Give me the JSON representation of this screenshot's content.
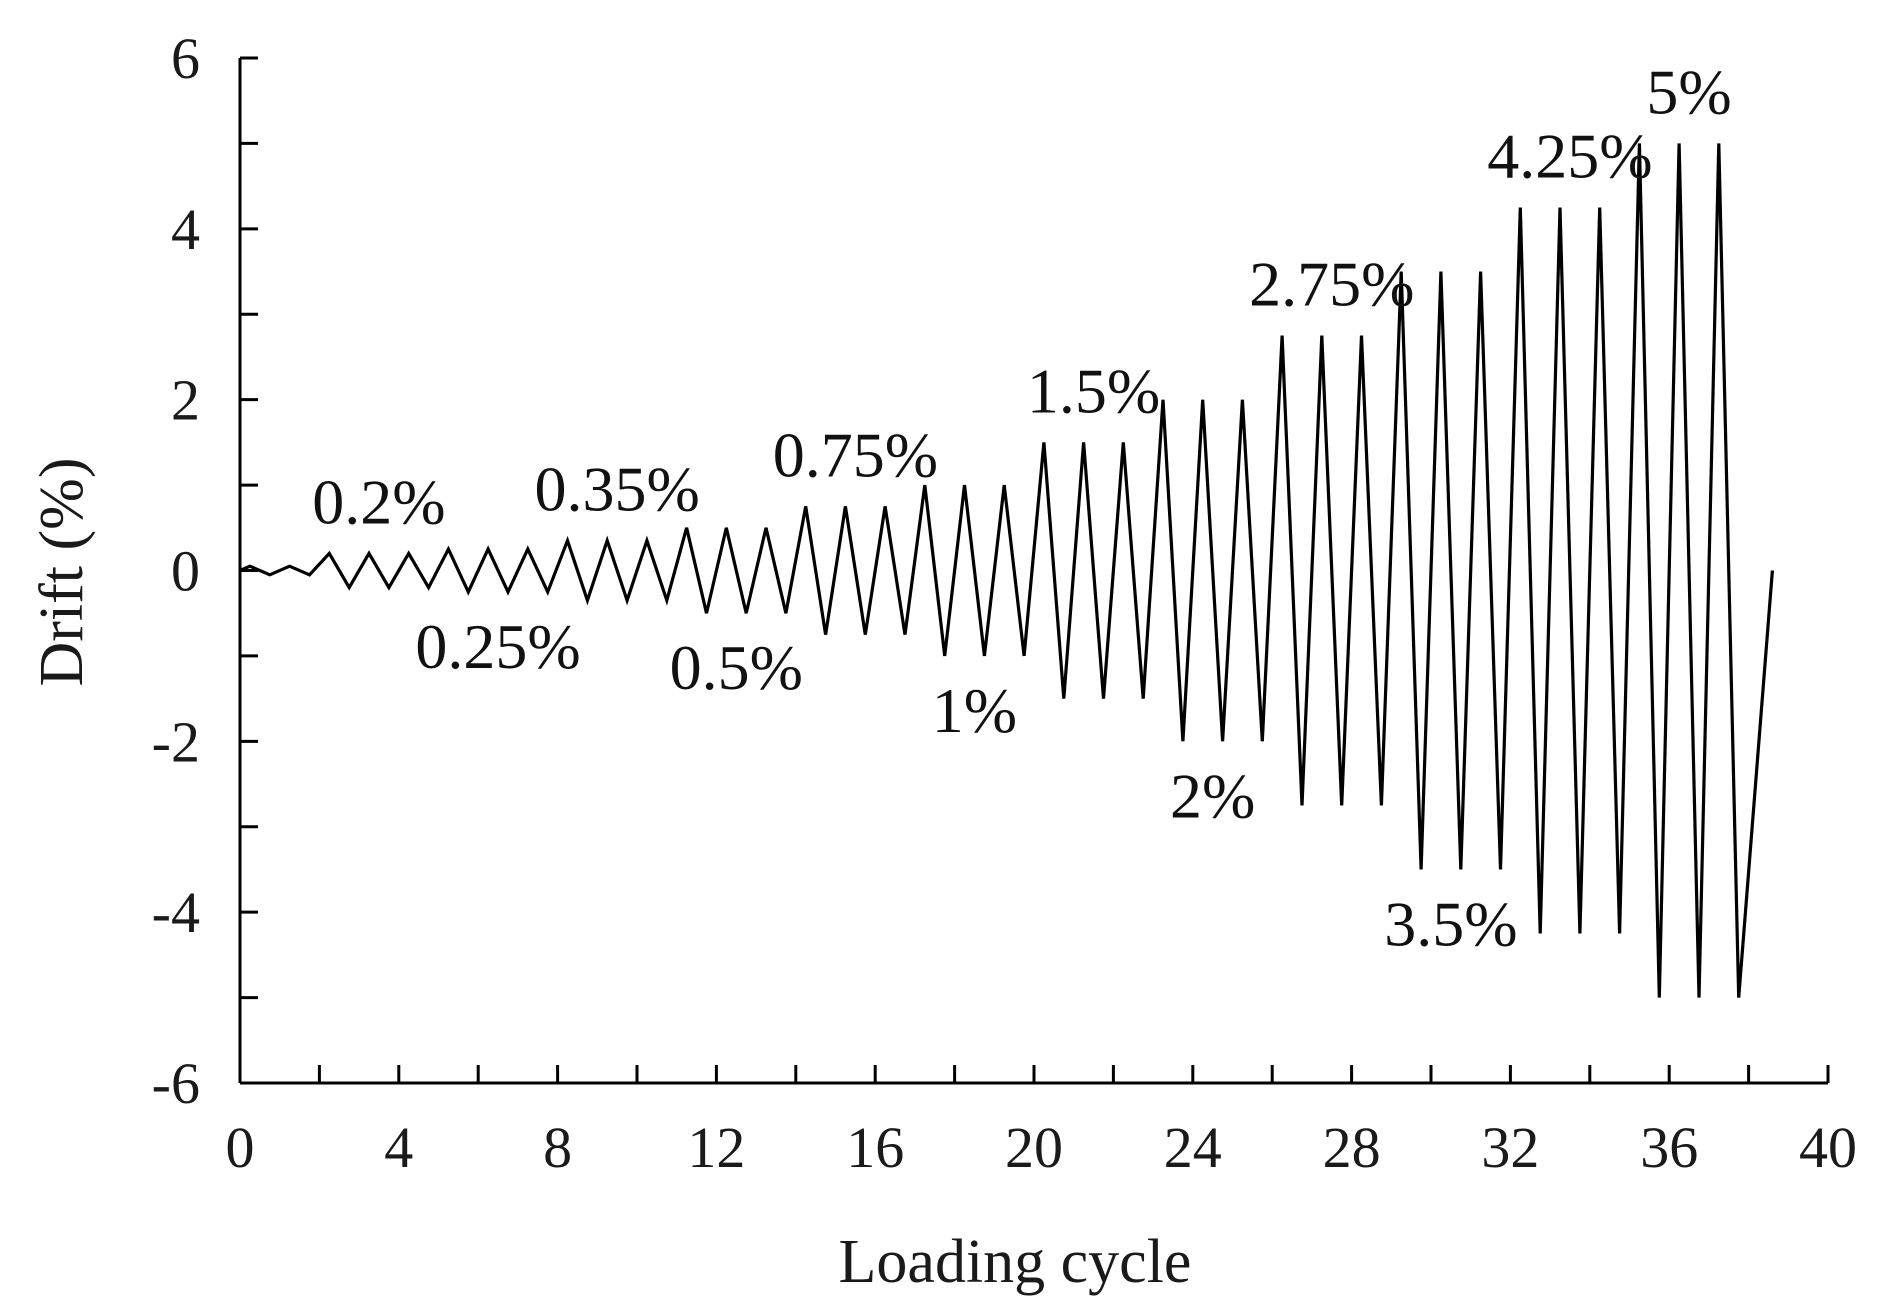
{
  "chart_data": {
    "type": "line",
    "title": "",
    "xlabel": "Loading cycle",
    "ylabel": "Drift (%)",
    "xlim": [
      0,
      40
    ],
    "ylim": [
      -6,
      6
    ],
    "x_ticks": [
      0,
      4,
      8,
      12,
      16,
      20,
      24,
      28,
      32,
      36,
      40
    ],
    "y_ticks": [
      -6,
      -4,
      -2,
      0,
      2,
      4,
      6
    ],
    "grid": false,
    "legend": "none",
    "line_color": "#000000",
    "levels": [
      {
        "label": "",
        "amplitude": 0.05,
        "cycles": 2,
        "label_side": "none"
      },
      {
        "label": "0.2%",
        "amplitude": 0.2,
        "cycles": 3,
        "label_side": "top"
      },
      {
        "label": "0.25%",
        "amplitude": 0.25,
        "cycles": 3,
        "label_side": "bottom"
      },
      {
        "label": "0.35%",
        "amplitude": 0.35,
        "cycles": 3,
        "label_side": "top"
      },
      {
        "label": "0.5%",
        "amplitude": 0.5,
        "cycles": 3,
        "label_side": "bottom"
      },
      {
        "label": "0.75%",
        "amplitude": 0.75,
        "cycles": 3,
        "label_side": "top"
      },
      {
        "label": "1%",
        "amplitude": 1.0,
        "cycles": 3,
        "label_side": "bottom"
      },
      {
        "label": "1.5%",
        "amplitude": 1.5,
        "cycles": 3,
        "label_side": "top"
      },
      {
        "label": "2%",
        "amplitude": 2.0,
        "cycles": 3,
        "label_side": "bottom"
      },
      {
        "label": "2.75%",
        "amplitude": 2.75,
        "cycles": 3,
        "label_side": "top"
      },
      {
        "label": "3.5%",
        "amplitude": 3.5,
        "cycles": 3,
        "label_side": "bottom"
      },
      {
        "label": "4.25%",
        "amplitude": 4.25,
        "cycles": 3,
        "label_side": "top"
      },
      {
        "label": "5%",
        "amplitude": 5.0,
        "cycles": 3,
        "label_side": "top"
      }
    ],
    "end_x": 38.6
  }
}
